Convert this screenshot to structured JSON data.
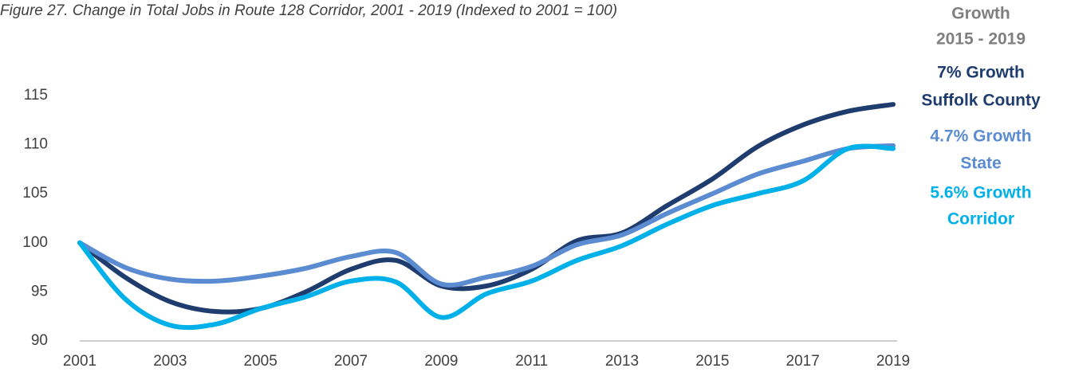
{
  "chart_data": {
    "type": "line",
    "title": "Figure 27. Change in Total Jobs in Route 128 Corridor, 2001 - 2019 (Indexed to 2001 = 100)",
    "annotation_header": [
      "Growth",
      "2015 - 2019"
    ],
    "x": [
      2001,
      2002,
      2003,
      2004,
      2005,
      2006,
      2007,
      2008,
      2009,
      2010,
      2011,
      2012,
      2013,
      2014,
      2015,
      2016,
      2017,
      2018,
      2019
    ],
    "xlim": [
      2001,
      2019
    ],
    "xticks": [
      2001,
      2003,
      2005,
      2007,
      2009,
      2011,
      2013,
      2015,
      2017,
      2019
    ],
    "ylim": [
      90,
      115
    ],
    "yticks": [
      90,
      95,
      100,
      105,
      110,
      115
    ],
    "grid": false,
    "series": [
      {
        "name": "Suffolk County",
        "growth_label": "7% Growth",
        "color": "#1f3c6e",
        "values": [
          100,
          96.5,
          94,
          93,
          93.3,
          95,
          97.3,
          98.2,
          95.6,
          95.6,
          97.3,
          100.2,
          101,
          103.8,
          106.5,
          109.8,
          112,
          113.4,
          114.1
        ]
      },
      {
        "name": "State",
        "growth_label": "4.7% Growth",
        "color": "#5b8bd0",
        "values": [
          100,
          97.5,
          96.3,
          96.1,
          96.6,
          97.4,
          98.6,
          99,
          95.8,
          96.5,
          97.6,
          99.8,
          100.8,
          103,
          105,
          107,
          108.3,
          109.6,
          109.9
        ]
      },
      {
        "name": "Corridor",
        "growth_label": "5.6% Growth",
        "color": "#00b0e8",
        "values": [
          100,
          94.3,
          91.6,
          91.7,
          93.3,
          94.5,
          96.1,
          96,
          92.4,
          94.8,
          96.1,
          98.2,
          99.7,
          101.9,
          103.8,
          105,
          106.3,
          109.6,
          109.6
        ]
      }
    ]
  }
}
